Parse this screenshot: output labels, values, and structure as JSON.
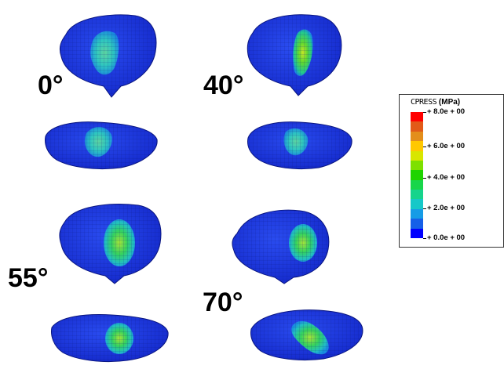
{
  "views": [
    {
      "angle_label": "0°"
    },
    {
      "angle_label": "40°"
    },
    {
      "angle_label": "55°"
    },
    {
      "angle_label": "70°"
    }
  ],
  "legend": {
    "variable": "CPRESS",
    "unit": "(MPa)",
    "tick_labels": [
      "+ 8.0e + 00",
      "+ 6.0e + 00",
      "+ 4.0e + 00",
      "+ 2.0e + 00",
      "+ 0.0e + 00"
    ],
    "colors": [
      "#ff0000",
      "#e25a18",
      "#e38e1b",
      "#ffc800",
      "#d8e600",
      "#7ee000",
      "#1fd400",
      "#18d64a",
      "#16d48c",
      "#16c8c8",
      "#169ce6",
      "#1660e8",
      "#0000ff"
    ]
  },
  "colors": {
    "mesh_blue": "#1c3ce0",
    "contact_low": "#2ec6c0",
    "contact_mid": "#2fd35a",
    "contact_high": "#b8e02a"
  }
}
